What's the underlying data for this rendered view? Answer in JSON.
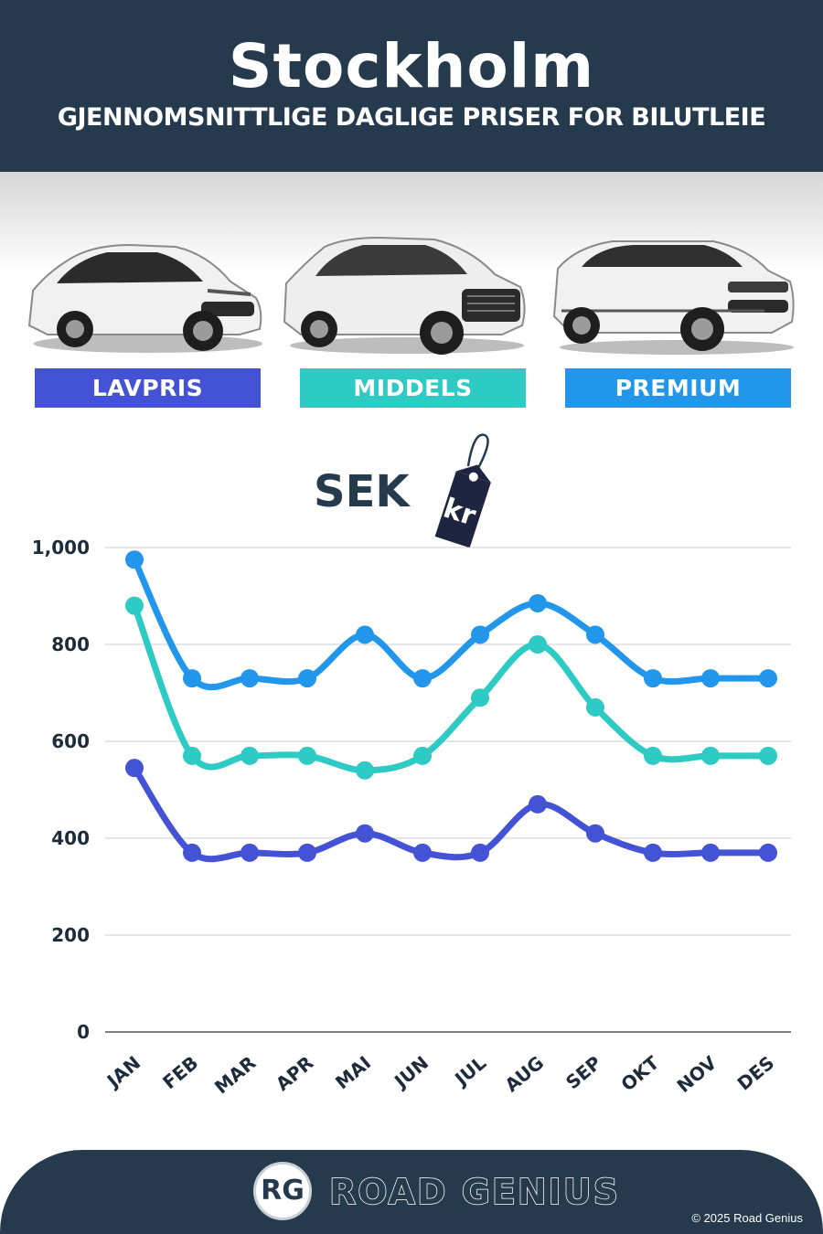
{
  "header": {
    "title": "Stockholm",
    "subtitle": "GJENNOMSNITTLIGE DAGLIGE PRISER FOR BILUTLEIE"
  },
  "car_labels": {
    "budget": "LAVPRIS",
    "middle": "MIDDELS",
    "premium": "PREMIUM"
  },
  "currency": {
    "label": "SEK",
    "tag": "kr"
  },
  "colors": {
    "background": "#ffffff",
    "header": "#253a4d",
    "budget": "#4453d6",
    "middle": "#2ecac4",
    "premium": "#2196ea",
    "grid": "#cccccc",
    "text": "#1e2b3a"
  },
  "chart_data": {
    "type": "line",
    "categories": [
      "JAN",
      "FEB",
      "MAR",
      "APR",
      "MAI",
      "JUN",
      "JUL",
      "AUG",
      "SEP",
      "OKT",
      "NOV",
      "DES"
    ],
    "series": [
      {
        "name": "PREMIUM",
        "color": "#2196ea",
        "values": [
          975,
          730,
          730,
          730,
          820,
          730,
          820,
          885,
          820,
          730,
          730,
          730
        ]
      },
      {
        "name": "MIDDELS",
        "color": "#2ecac4",
        "values": [
          880,
          570,
          570,
          570,
          540,
          570,
          690,
          800,
          670,
          570,
          570,
          570
        ]
      },
      {
        "name": "LAVPRIS",
        "color": "#4453d6",
        "values": [
          545,
          370,
          370,
          370,
          410,
          370,
          370,
          470,
          410,
          370,
          370,
          370
        ]
      }
    ],
    "yticks": [
      0,
      200,
      400,
      600,
      800,
      1000
    ],
    "ytick_labels": [
      "0",
      "200",
      "400",
      "600",
      "800",
      "1,000"
    ],
    "ylim": [
      0,
      1000
    ],
    "grid": true,
    "legend": "above chart, as colored labels under car images"
  },
  "footer": {
    "logo": "RG",
    "brand": "ROAD GENIUS",
    "copyright": "© 2025 Road Genius"
  }
}
